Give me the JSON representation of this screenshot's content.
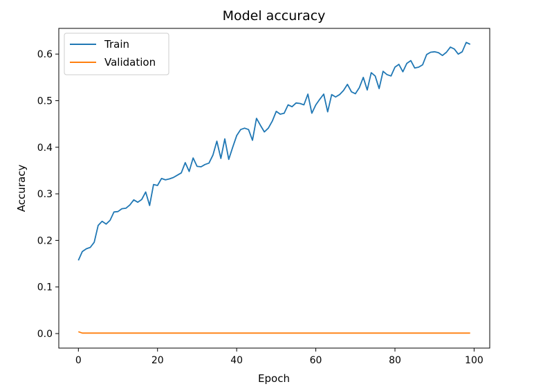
{
  "chart_data": {
    "type": "line",
    "title": "Model accuracy",
    "xlabel": "Epoch",
    "ylabel": "Accuracy",
    "xlim": [
      -4.95,
      103.95
    ],
    "ylim": [
      -0.0312,
      0.6552
    ],
    "xticks": [
      0,
      20,
      40,
      60,
      80,
      100
    ],
    "yticks": [
      0.0,
      0.1,
      0.2,
      0.3,
      0.4,
      0.5,
      0.6
    ],
    "xtick_labels": [
      "0",
      "20",
      "40",
      "60",
      "80",
      "100"
    ],
    "ytick_labels": [
      "0.0",
      "0.1",
      "0.2",
      "0.3",
      "0.4",
      "0.5",
      "0.6"
    ],
    "grid": false,
    "legend_position": "upper-left",
    "series": [
      {
        "name": "Train",
        "color": "#1f77b4",
        "x": [
          0,
          1,
          2,
          3,
          4,
          5,
          6,
          7,
          8,
          9,
          10,
          11,
          12,
          13,
          14,
          15,
          16,
          17,
          18,
          19,
          20,
          21,
          22,
          23,
          24,
          25,
          26,
          27,
          28,
          29,
          30,
          31,
          32,
          33,
          34,
          35,
          36,
          37,
          38,
          39,
          40,
          41,
          42,
          43,
          44,
          45,
          46,
          47,
          48,
          49,
          50,
          51,
          52,
          53,
          54,
          55,
          56,
          57,
          58,
          59,
          60,
          61,
          62,
          63,
          64,
          65,
          66,
          67,
          68,
          69,
          70,
          71,
          72,
          73,
          74,
          75,
          76,
          77,
          78,
          79,
          80,
          81,
          82,
          83,
          84,
          85,
          86,
          87,
          88,
          89,
          90,
          91,
          92,
          93,
          94,
          95,
          96,
          97,
          98,
          99
        ],
        "values": [
          0.157,
          0.176,
          0.182,
          0.185,
          0.196,
          0.232,
          0.241,
          0.235,
          0.243,
          0.261,
          0.262,
          0.268,
          0.269,
          0.276,
          0.287,
          0.282,
          0.288,
          0.304,
          0.275,
          0.32,
          0.318,
          0.333,
          0.33,
          0.332,
          0.335,
          0.34,
          0.345,
          0.367,
          0.348,
          0.377,
          0.359,
          0.358,
          0.363,
          0.366,
          0.383,
          0.413,
          0.376,
          0.418,
          0.374,
          0.4,
          0.425,
          0.438,
          0.441,
          0.438,
          0.415,
          0.462,
          0.447,
          0.433,
          0.441,
          0.456,
          0.477,
          0.471,
          0.473,
          0.491,
          0.487,
          0.495,
          0.494,
          0.491,
          0.514,
          0.473,
          0.491,
          0.503,
          0.514,
          0.476,
          0.513,
          0.508,
          0.513,
          0.522,
          0.535,
          0.519,
          0.515,
          0.528,
          0.55,
          0.523,
          0.56,
          0.553,
          0.526,
          0.563,
          0.556,
          0.553,
          0.572,
          0.578,
          0.562,
          0.58,
          0.586,
          0.57,
          0.572,
          0.577,
          0.599,
          0.604,
          0.605,
          0.603,
          0.597,
          0.604,
          0.615,
          0.611,
          0.6,
          0.605,
          0.625,
          0.621
        ]
      },
      {
        "name": "Validation",
        "color": "#ff7f0e",
        "x": [
          0,
          1,
          2,
          3,
          4,
          5,
          6,
          7,
          8,
          9,
          10,
          11,
          12,
          13,
          14,
          15,
          16,
          17,
          18,
          19,
          20,
          21,
          22,
          23,
          24,
          25,
          26,
          27,
          28,
          29,
          30,
          31,
          32,
          33,
          34,
          35,
          36,
          37,
          38,
          39,
          40,
          41,
          42,
          43,
          44,
          45,
          46,
          47,
          48,
          49,
          50,
          51,
          52,
          53,
          54,
          55,
          56,
          57,
          58,
          59,
          60,
          61,
          62,
          63,
          64,
          65,
          66,
          67,
          68,
          69,
          70,
          71,
          72,
          73,
          74,
          75,
          76,
          77,
          78,
          79,
          80,
          81,
          82,
          83,
          84,
          85,
          86,
          87,
          88,
          89,
          90,
          91,
          92,
          93,
          94,
          95,
          96,
          97,
          98,
          99
        ],
        "values": [
          0.004,
          0.001,
          0.001,
          0.001,
          0.001,
          0.001,
          0.001,
          0.001,
          0.001,
          0.001,
          0.001,
          0.001,
          0.001,
          0.001,
          0.001,
          0.001,
          0.001,
          0.001,
          0.001,
          0.001,
          0.001,
          0.001,
          0.001,
          0.001,
          0.001,
          0.001,
          0.001,
          0.001,
          0.001,
          0.001,
          0.001,
          0.001,
          0.001,
          0.001,
          0.001,
          0.001,
          0.001,
          0.001,
          0.001,
          0.001,
          0.001,
          0.001,
          0.001,
          0.001,
          0.001,
          0.001,
          0.001,
          0.001,
          0.001,
          0.001,
          0.001,
          0.001,
          0.001,
          0.001,
          0.001,
          0.001,
          0.001,
          0.001,
          0.001,
          0.001,
          0.001,
          0.001,
          0.001,
          0.001,
          0.001,
          0.001,
          0.001,
          0.001,
          0.001,
          0.001,
          0.001,
          0.001,
          0.001,
          0.001,
          0.001,
          0.001,
          0.001,
          0.001,
          0.001,
          0.001,
          0.001,
          0.001,
          0.001,
          0.001,
          0.001,
          0.001,
          0.001,
          0.001,
          0.001,
          0.001,
          0.001,
          0.001,
          0.001,
          0.001,
          0.001,
          0.001,
          0.001,
          0.001,
          0.001,
          0.001
        ]
      }
    ]
  }
}
